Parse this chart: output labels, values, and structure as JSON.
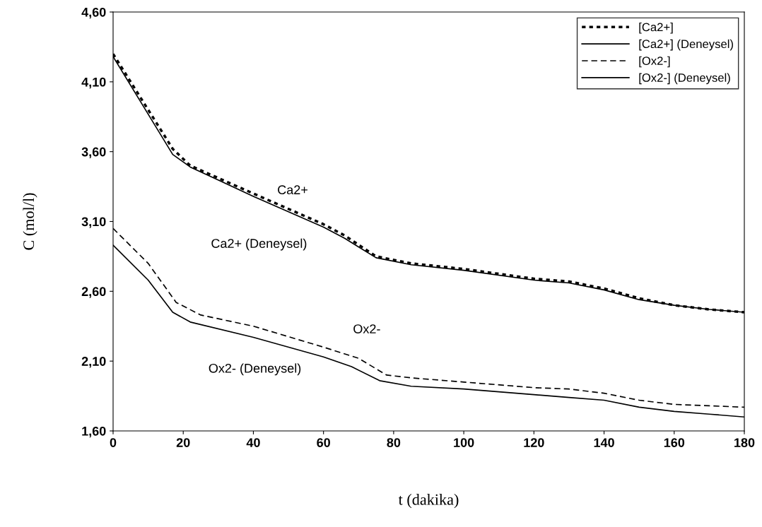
{
  "chart_data": {
    "type": "line",
    "xlabel": "t (dakika)",
    "ylabel": "C (mol/l)",
    "xlim": [
      0,
      180
    ],
    "xticks": [
      0,
      20,
      40,
      60,
      80,
      100,
      120,
      140,
      160,
      180
    ],
    "ylim": [
      1.6,
      4.6
    ],
    "yticks": [
      {
        "value": 1.6,
        "label": "1,60"
      },
      {
        "value": 2.1,
        "label": "2,10"
      },
      {
        "value": 2.6,
        "label": "2,60"
      },
      {
        "value": 3.1,
        "label": "3,10"
      },
      {
        "value": 3.6,
        "label": "3,60"
      },
      {
        "value": 4.1,
        "label": "4,10"
      },
      {
        "value": 4.6,
        "label": "4,60"
      }
    ],
    "grid": false,
    "legend": "top right",
    "marker": "none",
    "series": [
      {
        "name": "[Ca2+]",
        "color": "#000000",
        "line_style": "dotted",
        "x": [
          0,
          17,
          22,
          40,
          60,
          66,
          75,
          85,
          100,
          120,
          130,
          140,
          150,
          160,
          170,
          180
        ],
        "values": [
          4.3,
          3.62,
          3.5,
          3.3,
          3.08,
          3.0,
          2.85,
          2.8,
          2.76,
          2.69,
          2.67,
          2.62,
          2.55,
          2.5,
          2.47,
          2.45
        ]
      },
      {
        "name": "[Ca2+] (Deneysel)",
        "color": "#000000",
        "line_style": "solid",
        "x": [
          0,
          17,
          22,
          40,
          60,
          66,
          75,
          85,
          100,
          120,
          130,
          140,
          150,
          160,
          170,
          180
        ],
        "values": [
          4.28,
          3.58,
          3.49,
          3.28,
          3.06,
          2.98,
          2.84,
          2.79,
          2.75,
          2.68,
          2.66,
          2.61,
          2.54,
          2.5,
          2.47,
          2.45
        ]
      },
      {
        "name": "[Ox2-]",
        "color": "#000000",
        "line_style": "dashed",
        "x": [
          0,
          10,
          18,
          25,
          40,
          60,
          70,
          78,
          85,
          100,
          120,
          130,
          140,
          150,
          160,
          170,
          180
        ],
        "values": [
          3.05,
          2.8,
          2.52,
          2.43,
          2.35,
          2.2,
          2.12,
          2.0,
          1.98,
          1.95,
          1.91,
          1.9,
          1.87,
          1.82,
          1.79,
          1.78,
          1.77
        ]
      },
      {
        "name": "[Ox2-] (Deneysel)",
        "color": "#000000",
        "line_style": "solid",
        "x": [
          0,
          10,
          17,
          22,
          40,
          60,
          68,
          76,
          85,
          100,
          120,
          130,
          140,
          150,
          160,
          170,
          180
        ],
        "values": [
          2.93,
          2.68,
          2.45,
          2.38,
          2.27,
          2.13,
          2.06,
          1.96,
          1.92,
          1.9,
          1.86,
          1.84,
          1.82,
          1.77,
          1.74,
          1.72,
          1.7
        ]
      }
    ],
    "annotations": [
      "Ca2+",
      "Ca2+ (Deneysel)",
      "Ox2-",
      "Ox2- (Deneysel)"
    ]
  }
}
